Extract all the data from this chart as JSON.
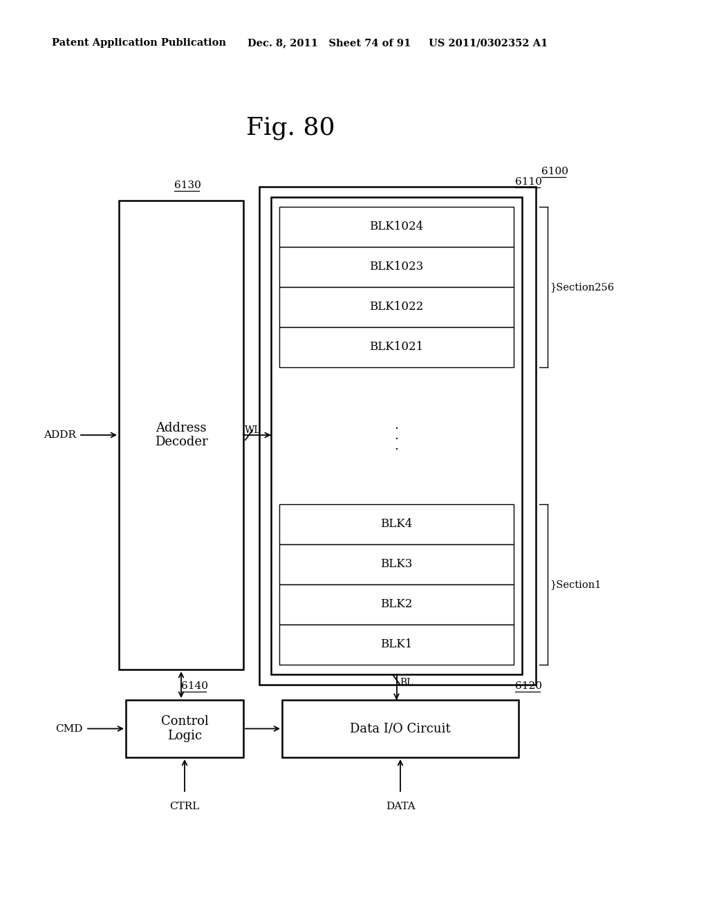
{
  "bg_color": "#ffffff",
  "title": "Fig. 80",
  "header_left": "Patent Application Publication",
  "header_mid": "Dec. 8, 2011   Sheet 74 of 91",
  "header_right": "US 2011/0302352 A1",
  "label_6100": "6100",
  "label_6110": "6110",
  "label_6120": "6120",
  "label_6130": "6130",
  "label_6140": "6140",
  "addr_decoder_label": "Address\nDecoder",
  "control_logic_label": "Control\nLogic",
  "data_io_label": "Data I/O Circuit",
  "top_blk_labels": [
    "BLK1024",
    "BLK1023",
    "BLK1022",
    "BLK1021"
  ],
  "bot_blk_labels": [
    "BLK4",
    "BLK3",
    "BLK2",
    "BLK1"
  ],
  "section256_label": "}Section256",
  "section1_label": "}Section1",
  "addr_label": "ADDR",
  "wl_label": "WL",
  "bl_label": "BL",
  "cmd_label": "CMD",
  "ctrl_label": "CTRL",
  "data_label": "DATA"
}
